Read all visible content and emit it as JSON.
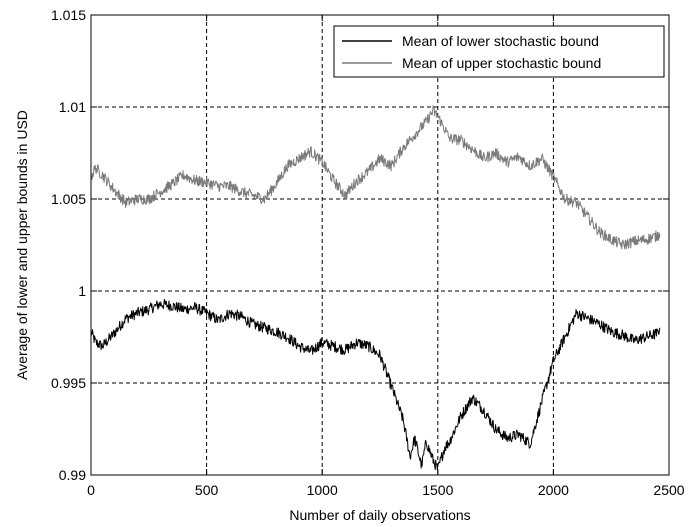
{
  "chart_data": {
    "type": "line",
    "title": "",
    "xlabel": "Number of daily observations",
    "ylabel": "Average of lower and upper bounds in USD",
    "xlim": [
      0,
      2500
    ],
    "ylim": [
      0.99,
      1.015
    ],
    "xticks": [
      0,
      500,
      1000,
      1500,
      2000,
      2500
    ],
    "xtick_labels": [
      "0",
      "500",
      "1000",
      "1500",
      "2000",
      "2500"
    ],
    "yticks": [
      0.99,
      0.995,
      1.0,
      1.005,
      1.01,
      1.015
    ],
    "ytick_labels": [
      "0.99",
      "0.995",
      "1",
      "1.005",
      "1.01",
      "1.015"
    ],
    "grid": true,
    "legend": "top-right",
    "series": [
      {
        "name": "Mean of lower stochastic bound",
        "color": "#000000",
        "x": [
          0,
          20,
          50,
          100,
          150,
          200,
          250,
          300,
          350,
          400,
          450,
          500,
          550,
          600,
          650,
          700,
          750,
          800,
          850,
          900,
          950,
          1000,
          1050,
          1100,
          1150,
          1200,
          1250,
          1300,
          1350,
          1380,
          1400,
          1430,
          1450,
          1480,
          1500,
          1530,
          1550,
          1600,
          1650,
          1700,
          1750,
          1800,
          1850,
          1900,
          1950,
          2000,
          2050,
          2100,
          2150,
          2200,
          2250,
          2300,
          2350,
          2400,
          2450,
          2460
        ],
        "y": [
          0.9978,
          0.9972,
          0.997,
          0.9977,
          0.9985,
          0.9988,
          0.999,
          0.9993,
          0.9992,
          0.999,
          0.9991,
          0.9988,
          0.9984,
          0.9988,
          0.9986,
          0.9982,
          0.998,
          0.9978,
          0.9975,
          0.997,
          0.9967,
          0.9972,
          0.997,
          0.9968,
          0.9972,
          0.997,
          0.9965,
          0.9948,
          0.993,
          0.991,
          0.992,
          0.9905,
          0.9918,
          0.9908,
          0.9903,
          0.9915,
          0.9918,
          0.9932,
          0.9942,
          0.9935,
          0.9925,
          0.992,
          0.9922,
          0.9917,
          0.994,
          0.9962,
          0.9975,
          0.9988,
          0.9985,
          0.9982,
          0.9978,
          0.9976,
          0.9973,
          0.9975,
          0.9977,
          0.998
        ]
      },
      {
        "name": "Mean of upper stochastic bound",
        "color": "#7a7a7a",
        "x": [
          0,
          20,
          50,
          100,
          150,
          200,
          250,
          300,
          350,
          400,
          450,
          500,
          550,
          600,
          650,
          700,
          750,
          800,
          850,
          900,
          950,
          1000,
          1050,
          1100,
          1150,
          1200,
          1250,
          1300,
          1350,
          1400,
          1450,
          1480,
          1500,
          1530,
          1550,
          1600,
          1650,
          1700,
          1750,
          1800,
          1850,
          1900,
          1950,
          2000,
          2050,
          2100,
          2150,
          2200,
          2250,
          2300,
          2350,
          2400,
          2450,
          2460
        ],
        "y": [
          1.0062,
          1.0067,
          1.0063,
          1.0055,
          1.0048,
          1.005,
          1.005,
          1.0054,
          1.0058,
          1.0063,
          1.006,
          1.0059,
          1.0057,
          1.0057,
          1.0054,
          1.0052,
          1.005,
          1.0058,
          1.0068,
          1.0072,
          1.0076,
          1.007,
          1.006,
          1.0052,
          1.006,
          1.0065,
          1.0072,
          1.0068,
          1.0078,
          1.0085,
          1.0092,
          1.0098,
          1.0095,
          1.0088,
          1.0083,
          1.0082,
          1.0077,
          1.0072,
          1.0075,
          1.007,
          1.0073,
          1.0068,
          1.0072,
          1.0062,
          1.005,
          1.0048,
          1.004,
          1.0032,
          1.0028,
          1.0025,
          1.0027,
          1.0028,
          1.003,
          1.0031
        ]
      }
    ]
  }
}
